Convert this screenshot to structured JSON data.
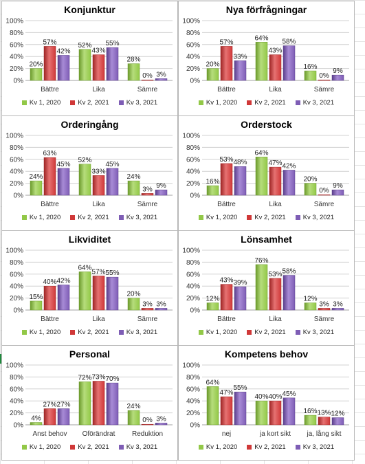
{
  "colors": {
    "series": [
      "#92c847",
      "#d03838",
      "#7e5db5"
    ],
    "series_dark": [
      "#6b9a2c",
      "#9e2525",
      "#5a3e8a"
    ],
    "series_light": [
      "#b6dd7c",
      "#e67272",
      "#a88bd6"
    ],
    "axis_text": "#333333",
    "grid": "#d0d0d0"
  },
  "chart_data": [
    {
      "type": "bar",
      "title": "Konjunktur",
      "categories": [
        "Bättre",
        "Lika",
        "Sämre"
      ],
      "series": [
        {
          "name": "Kv 1, 2020",
          "values": [
            20,
            52,
            28
          ]
        },
        {
          "name": "Kv 2, 2021",
          "values": [
            57,
            43,
            0
          ]
        },
        {
          "name": "Kv 3, 2021",
          "values": [
            42,
            55,
            3
          ]
        }
      ],
      "ylim": [
        0,
        100
      ],
      "yticks": [
        "0%",
        "20%",
        "40%",
        "60%",
        "80%",
        "100%"
      ],
      "grid": true,
      "legend": "bottom"
    },
    {
      "type": "bar",
      "title": "Nya förfrågningar",
      "categories": [
        "Bättre",
        "Lika",
        "Sämre"
      ],
      "series": [
        {
          "name": "Kv 1, 2020",
          "values": [
            20,
            64,
            16
          ]
        },
        {
          "name": "Kv 2, 2021",
          "values": [
            57,
            43,
            0
          ]
        },
        {
          "name": "Kv 3, 2021",
          "values": [
            33,
            58,
            9
          ]
        }
      ],
      "ylim": [
        0,
        100
      ],
      "yticks": [
        "0%",
        "20%",
        "40%",
        "60%",
        "80%",
        "100%"
      ],
      "grid": true,
      "legend": "bottom"
    },
    {
      "type": "bar",
      "title": "Orderingång",
      "categories": [
        "Bättre",
        "Lika",
        "Sämre"
      ],
      "series": [
        {
          "name": "Kv 1, 2020",
          "values": [
            24,
            52,
            24
          ]
        },
        {
          "name": "Kv 2, 2021",
          "values": [
            63,
            33,
            3
          ]
        },
        {
          "name": "Kv 3, 2021",
          "values": [
            45,
            45,
            9
          ]
        }
      ],
      "ylim": [
        0,
        100
      ],
      "yticks": [
        "0%",
        "20%",
        "40%",
        "60%",
        "80%",
        "100%"
      ],
      "grid": true,
      "legend": "bottom"
    },
    {
      "type": "bar",
      "title": "Orderstock",
      "categories": [
        "Bättre",
        "Lika",
        "Sämre"
      ],
      "series": [
        {
          "name": "Kv 1, 2020",
          "values": [
            16,
            64,
            20
          ]
        },
        {
          "name": "Kv 2, 2021",
          "values": [
            53,
            47,
            0
          ]
        },
        {
          "name": "Kv 3, 2021",
          "values": [
            48,
            42,
            9
          ]
        }
      ],
      "ylim": [
        0,
        100
      ],
      "yticks": [
        "0%",
        "20%",
        "40%",
        "60%",
        "80%",
        "100%"
      ],
      "grid": true,
      "legend": "bottom"
    },
    {
      "type": "bar",
      "title": "Likviditet",
      "categories": [
        "Bättre",
        "Lika",
        "Sämre"
      ],
      "series": [
        {
          "name": "Kv 1, 2020",
          "values": [
            15,
            64,
            20
          ]
        },
        {
          "name": "Kv 2, 2021",
          "values": [
            40,
            57,
            3
          ]
        },
        {
          "name": "Kv 3, 2021",
          "values": [
            42,
            55,
            3
          ]
        }
      ],
      "ylim": [
        0,
        100
      ],
      "yticks": [
        "0%",
        "20%",
        "40%",
        "60%",
        "80%",
        "100%"
      ],
      "grid": true,
      "legend": "bottom"
    },
    {
      "type": "bar",
      "title": "Lönsamhet",
      "categories": [
        "Bättre",
        "Lika",
        "Sämre"
      ],
      "series": [
        {
          "name": "Kv 1, 2020",
          "values": [
            12,
            76,
            12
          ]
        },
        {
          "name": "Kv 2, 2021",
          "values": [
            43,
            53,
            3
          ]
        },
        {
          "name": "Kv 3, 2021",
          "values": [
            39,
            58,
            3
          ]
        }
      ],
      "ylim": [
        0,
        100
      ],
      "yticks": [
        "0%",
        "20%",
        "40%",
        "60%",
        "80%",
        "100%"
      ],
      "grid": true,
      "legend": "bottom"
    },
    {
      "type": "bar",
      "title": "Personal",
      "categories": [
        "Anst behov",
        "Oförändrat",
        "Reduktion"
      ],
      "series": [
        {
          "name": "Kv 1, 2020",
          "values": [
            4,
            72,
            24
          ]
        },
        {
          "name": "Kv 2, 2021",
          "values": [
            27,
            73,
            0
          ]
        },
        {
          "name": "Kv 3, 2021",
          "values": [
            27,
            70,
            3
          ]
        }
      ],
      "ylim": [
        0,
        100
      ],
      "yticks": [
        "0%",
        "20%",
        "40%",
        "60%",
        "80%",
        "100%"
      ],
      "grid": true,
      "legend": "bottom"
    },
    {
      "type": "bar",
      "title": "Kompetens behov",
      "categories": [
        "nej",
        "ja kort sikt",
        "ja, lång sikt"
      ],
      "series": [
        {
          "name": "Kv 1, 2020",
          "values": [
            64,
            40,
            16
          ]
        },
        {
          "name": "Kv 2, 2021",
          "values": [
            47,
            40,
            13
          ]
        },
        {
          "name": "Kv 3, 2021",
          "values": [
            55,
            45,
            12
          ]
        }
      ],
      "ylim": [
        0,
        100
      ],
      "yticks": [
        "0%",
        "20%",
        "40%",
        "60%",
        "80%",
        "100%"
      ],
      "grid": true,
      "legend": "bottom"
    }
  ]
}
